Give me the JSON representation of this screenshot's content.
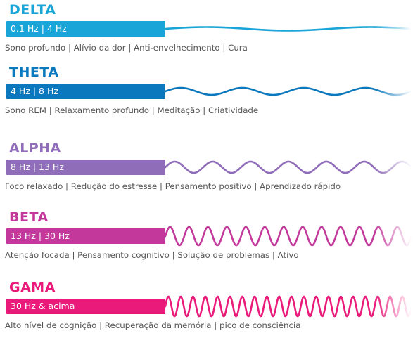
{
  "bands": [
    {
      "name": "DELTA",
      "range": "0.1 Hz | 4 Hz",
      "description": "Sono profundo | Alívio da dor | Anti-envelhecimento |  Cura",
      "color": "#1aa5d8",
      "cycles": 1.5,
      "amplitude": 2.5
    },
    {
      "name": "THETA",
      "range": "4 Hz | 8 Hz",
      "description": "Sono REM | Relaxamento profundo | Meditação | Criatividade",
      "color": "#0b77bd",
      "cycles": 4,
      "amplitude": 5
    },
    {
      "name": "ALPHA",
      "range": "8 Hz | 13 Hz",
      "description": "Foco relaxado | Redução do estresse | Pensamento positivo | Aprendizado rápido",
      "color": "#8f6db8",
      "cycles": 6.5,
      "amplitude": 8
    },
    {
      "name": "BETA",
      "range": "13 Hz | 30 Hz",
      "description": "Atenção focada | Pensamento cognitivo | Solução de problemas | Ativo",
      "color": "#c2399b",
      "cycles": 13,
      "amplitude": 13
    },
    {
      "name": "GAMA",
      "range": "30 Hz & acima",
      "description": "Alto nível de cognição | Recuperação da memória | pico de consciência",
      "color": "#ea1a7a",
      "cycles": 20,
      "amplitude": 14
    }
  ]
}
